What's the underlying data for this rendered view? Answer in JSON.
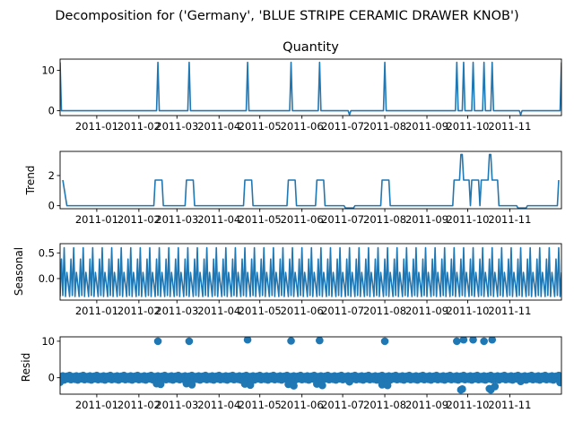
{
  "figure": {
    "suptitle": "Decomposition for ('Germany', 'BLUE STRIPE CERAMIC DRAWER KNOB')"
  },
  "colors": {
    "series": "#1f77b4",
    "axes": "#000000",
    "background": "#ffffff"
  },
  "chart_data": [
    {
      "type": "line",
      "title": "Quantity",
      "ylabel": "",
      "ylim": [
        -1.2,
        12.8
      ],
      "yticks": [
        0,
        10
      ],
      "xlim": [
        "2010-12-05",
        "2011-12-09"
      ],
      "xticks": [
        "2011-01-01",
        "2011-02-01",
        "2011-03-01",
        "2011-04-01",
        "2011-05-01",
        "2011-06-01",
        "2011-07-01",
        "2011-08-01",
        "2011-09-01",
        "2011-10-01",
        "2011-11-01"
      ],
      "xticklabels": [
        "2011-01",
        "2011-02",
        "2011-03",
        "2011-04",
        "2011-05",
        "2011-06",
        "2011-07",
        "2011-08",
        "2011-09",
        "2011-10",
        "2011-11"
      ],
      "points": [
        [
          "2010-12-05",
          12
        ],
        [
          "2010-12-06",
          0
        ],
        [
          "2011-02-14",
          0
        ],
        [
          "2011-02-15",
          12
        ],
        [
          "2011-02-16",
          0
        ],
        [
          "2011-03-09",
          0
        ],
        [
          "2011-03-10",
          12
        ],
        [
          "2011-03-11",
          0
        ],
        [
          "2011-04-21",
          0
        ],
        [
          "2011-04-22",
          12
        ],
        [
          "2011-04-23",
          0
        ],
        [
          "2011-05-23",
          0
        ],
        [
          "2011-05-24",
          12
        ],
        [
          "2011-05-25",
          0
        ],
        [
          "2011-06-13",
          0
        ],
        [
          "2011-06-14",
          12
        ],
        [
          "2011-06-15",
          0
        ],
        [
          "2011-07-05",
          0
        ],
        [
          "2011-07-06",
          -1
        ],
        [
          "2011-07-07",
          0
        ],
        [
          "2011-07-31",
          0
        ],
        [
          "2011-08-01",
          12
        ],
        [
          "2011-08-02",
          0
        ],
        [
          "2011-09-22",
          0
        ],
        [
          "2011-09-23",
          12
        ],
        [
          "2011-09-24",
          0
        ],
        [
          "2011-09-27",
          0
        ],
        [
          "2011-09-28",
          12
        ],
        [
          "2011-09-29",
          0
        ],
        [
          "2011-10-04",
          0
        ],
        [
          "2011-10-05",
          12
        ],
        [
          "2011-10-06",
          0
        ],
        [
          "2011-10-12",
          0
        ],
        [
          "2011-10-13",
          12
        ],
        [
          "2011-10-14",
          0
        ],
        [
          "2011-10-18",
          0
        ],
        [
          "2011-10-19",
          12
        ],
        [
          "2011-10-20",
          0
        ],
        [
          "2011-11-08",
          0
        ],
        [
          "2011-11-09",
          -1
        ],
        [
          "2011-11-10",
          0
        ],
        [
          "2011-12-08",
          0
        ],
        [
          "2011-12-09",
          12
        ]
      ]
    },
    {
      "type": "line",
      "title": "",
      "ylabel": "Trend",
      "ylim": [
        -0.2,
        3.6
      ],
      "yticks": [
        0,
        2
      ],
      "xlim": [
        "2010-12-05",
        "2011-12-09"
      ],
      "xticks": [
        "2011-01-01",
        "2011-02-01",
        "2011-03-01",
        "2011-04-01",
        "2011-05-01",
        "2011-06-01",
        "2011-07-01",
        "2011-08-01",
        "2011-09-01",
        "2011-10-01",
        "2011-11-01"
      ],
      "xticklabels": [
        "2011-01",
        "2011-02",
        "2011-03",
        "2011-04",
        "2011-05",
        "2011-06",
        "2011-07",
        "2011-08",
        "2011-09",
        "2011-10",
        "2011-11"
      ],
      "points": [
        [
          "2010-12-07",
          1.7
        ],
        [
          "2010-12-10",
          0
        ],
        [
          "2011-02-12",
          0
        ],
        [
          "2011-02-13",
          1.7
        ],
        [
          "2011-02-18",
          1.7
        ],
        [
          "2011-02-19",
          0
        ],
        [
          "2011-03-07",
          0
        ],
        [
          "2011-03-08",
          1.7
        ],
        [
          "2011-03-13",
          1.7
        ],
        [
          "2011-03-14",
          0
        ],
        [
          "2011-04-19",
          0
        ],
        [
          "2011-04-20",
          1.7
        ],
        [
          "2011-04-25",
          1.7
        ],
        [
          "2011-04-26",
          0
        ],
        [
          "2011-05-21",
          0
        ],
        [
          "2011-05-22",
          1.7
        ],
        [
          "2011-05-27",
          1.7
        ],
        [
          "2011-05-28",
          0
        ],
        [
          "2011-06-11",
          0
        ],
        [
          "2011-06-12",
          1.7
        ],
        [
          "2011-06-17",
          1.7
        ],
        [
          "2011-06-18",
          0
        ],
        [
          "2011-07-02",
          0
        ],
        [
          "2011-07-03",
          -0.15
        ],
        [
          "2011-07-09",
          -0.15
        ],
        [
          "2011-07-10",
          0
        ],
        [
          "2011-07-29",
          0
        ],
        [
          "2011-07-30",
          1.7
        ],
        [
          "2011-08-04",
          1.7
        ],
        [
          "2011-08-05",
          0
        ],
        [
          "2011-09-20",
          0
        ],
        [
          "2011-09-21",
          1.7
        ],
        [
          "2011-09-25",
          1.7
        ],
        [
          "2011-09-26",
          3.4
        ],
        [
          "2011-09-27",
          3.4
        ],
        [
          "2011-09-28",
          1.7
        ],
        [
          "2011-10-02",
          1.7
        ],
        [
          "2011-10-03",
          0
        ],
        [
          "2011-10-04",
          1.7
        ],
        [
          "2011-10-09",
          1.7
        ],
        [
          "2011-10-10",
          0
        ],
        [
          "2011-10-11",
          1.7
        ],
        [
          "2011-10-16",
          1.7
        ],
        [
          "2011-10-17",
          3.4
        ],
        [
          "2011-10-18",
          3.4
        ],
        [
          "2011-10-19",
          1.7
        ],
        [
          "2011-10-23",
          1.7
        ],
        [
          "2011-10-24",
          0
        ],
        [
          "2011-11-06",
          0
        ],
        [
          "2011-11-07",
          -0.15
        ],
        [
          "2011-11-13",
          -0.15
        ],
        [
          "2011-11-14",
          0
        ],
        [
          "2011-12-06",
          0
        ],
        [
          "2011-12-07",
          1.7
        ]
      ]
    },
    {
      "type": "line",
      "title": "",
      "ylabel": "Seasonal",
      "ylim": [
        -0.42,
        0.68
      ],
      "yticks": [
        0.0,
        0.5
      ],
      "yticklabels": [
        "0.0",
        "0.5"
      ],
      "xlim": [
        "2010-12-05",
        "2011-12-09"
      ],
      "xticks": [
        "2011-01-01",
        "2011-02-01",
        "2011-03-01",
        "2011-04-01",
        "2011-05-01",
        "2011-06-01",
        "2011-07-01",
        "2011-08-01",
        "2011-09-01",
        "2011-10-01",
        "2011-11-01"
      ],
      "xticklabels": [
        "2011-01",
        "2011-02",
        "2011-03",
        "2011-04",
        "2011-05",
        "2011-06",
        "2011-07",
        "2011-08",
        "2011-09",
        "2011-10",
        "2011-11"
      ],
      "start": "2010-12-05",
      "end": "2011-12-09",
      "weekly_pattern": [
        -0.35,
        0.38,
        -0.33,
        0.6,
        -0.35,
        0.12,
        -0.1
      ]
    },
    {
      "type": "scatter",
      "title": "",
      "ylabel": "Resid",
      "ylim": [
        -4.5,
        11.2
      ],
      "yticks": [
        0,
        10
      ],
      "xlim": [
        "2010-12-05",
        "2011-12-09"
      ],
      "xticks": [
        "2011-01-01",
        "2011-02-01",
        "2011-03-01",
        "2011-04-01",
        "2011-05-01",
        "2011-06-01",
        "2011-07-01",
        "2011-08-01",
        "2011-09-01",
        "2011-10-01",
        "2011-11-01"
      ],
      "xticklabels": [
        "2011-01",
        "2011-02",
        "2011-03",
        "2011-04",
        "2011-05",
        "2011-06",
        "2011-07",
        "2011-08",
        "2011-09",
        "2011-10",
        "2011-11"
      ],
      "baseline": 0,
      "background": {
        "start": "2010-12-05",
        "end": "2011-12-09",
        "pattern": [
          0.3,
          -0.4,
          0.5,
          -0.6,
          0.2,
          0.4,
          -0.3,
          0.6,
          -0.5,
          0.1
        ]
      },
      "points": [
        [
          "2010-12-05",
          -1.2
        ],
        [
          "2011-02-15",
          10.0
        ],
        [
          "2011-02-14",
          -1.6
        ],
        [
          "2011-02-17",
          -1.8
        ],
        [
          "2011-03-10",
          10.0
        ],
        [
          "2011-03-08",
          -1.6
        ],
        [
          "2011-03-12",
          -1.9
        ],
        [
          "2011-04-22",
          10.4
        ],
        [
          "2011-04-20",
          -1.7
        ],
        [
          "2011-04-24",
          -2.0
        ],
        [
          "2011-05-24",
          10.1
        ],
        [
          "2011-05-22",
          -1.8
        ],
        [
          "2011-05-26",
          -2.2
        ],
        [
          "2011-06-14",
          10.2
        ],
        [
          "2011-06-12",
          -1.7
        ],
        [
          "2011-06-16",
          -2.1
        ],
        [
          "2011-08-01",
          10.0
        ],
        [
          "2011-07-30",
          -1.9
        ],
        [
          "2011-08-03",
          -2.1
        ],
        [
          "2011-07-06",
          -1.1
        ],
        [
          "2011-09-23",
          10.0
        ],
        [
          "2011-09-28",
          10.4
        ],
        [
          "2011-09-26",
          -3.3
        ],
        [
          "2011-09-27",
          -3.1
        ],
        [
          "2011-10-05",
          10.4
        ],
        [
          "2011-10-13",
          10.0
        ],
        [
          "2011-10-19",
          10.4
        ],
        [
          "2011-10-17",
          -3.0
        ],
        [
          "2011-10-18",
          -3.3
        ],
        [
          "2011-10-21",
          -2.4
        ],
        [
          "2011-11-09",
          -1.0
        ],
        [
          "2011-12-08",
          -1.3
        ]
      ]
    }
  ]
}
